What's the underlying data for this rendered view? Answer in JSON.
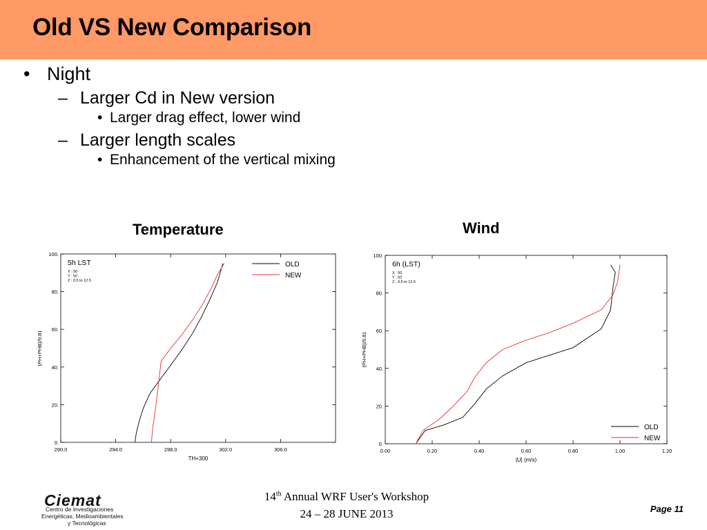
{
  "slide": {
    "title": "Old VS New Comparison",
    "bullets": {
      "b1": "Night",
      "b2": "Larger Cd in New version",
      "b3": "Larger drag effect, lower wind",
      "b4": "Larger length scales",
      "b5": "Enhancement of the vertical mixing"
    },
    "marks": {
      "dot": "•",
      "dash": "–"
    },
    "chart_titles": {
      "temperature": "Temperature",
      "wind": "Wind"
    }
  },
  "footer": {
    "logo_word": "Ciemat",
    "logo_lines": [
      "Centro de Investigaciones",
      "Energéticas, Medioambientales",
      "y Tecnológicas"
    ],
    "workshop_num": "14",
    "workshop_sup": "th",
    "workshop_text": " Annual WRF User's Workshop",
    "workshop_dates": "24 – 28 JUNE 2013",
    "page": "Page 11"
  },
  "colors": {
    "title_bar": "#FF9966",
    "old": "#000000",
    "new": "#E53030"
  },
  "chart_data": [
    {
      "type": "line",
      "title": "Temperature",
      "panel_title": "5h LST",
      "info": [
        "X : 50",
        "Y : 50",
        "Z : 0.5 to 12.5"
      ],
      "xlabel": "TH+300",
      "ylabel": "(PH+PHB)/9.81",
      "xlim": [
        290,
        310
      ],
      "ylim": [
        0,
        100
      ],
      "xticks": [
        290,
        294,
        298,
        302,
        306
      ],
      "xtick_labels": [
        "290.0",
        "294.0",
        "298.0",
        "302.0",
        "306.0"
      ],
      "yticks": [
        0,
        20,
        40,
        60,
        80,
        100
      ],
      "ytick_labels": [
        "0.",
        "20.",
        "40.",
        "60.",
        "80.",
        "100."
      ],
      "legend": "top-right",
      "series": [
        {
          "name": "OLD",
          "color": "#000000",
          "x": [
            295.4,
            295.5,
            295.7,
            296.0,
            296.5,
            297.2,
            298.0,
            298.8,
            299.6,
            300.2,
            300.8,
            301.4,
            301.8
          ],
          "y": [
            0,
            5,
            11,
            18,
            26,
            33,
            41,
            49,
            58,
            66,
            75,
            85,
            95
          ]
        },
        {
          "name": "NEW",
          "color": "#E53030",
          "x": [
            296.6,
            296.7,
            296.9,
            297.1,
            297.3,
            298.0,
            298.8,
            299.6,
            300.3,
            300.9,
            301.4,
            301.9
          ],
          "y": [
            0,
            8,
            18,
            30,
            43,
            50,
            57,
            65,
            73,
            81,
            89,
            95
          ]
        }
      ]
    },
    {
      "type": "line",
      "title": "Wind",
      "panel_title": "6h (LST)",
      "info": [
        "X : 50",
        "Y : 50",
        "Z : 0.5 to 12.5"
      ],
      "xlabel": "|U| (m/s)",
      "ylabel": "(PH+PHB)/9.81",
      "xlim": [
        0,
        1.2
      ],
      "ylim": [
        0,
        100
      ],
      "xticks": [
        0,
        0.2,
        0.4,
        0.6,
        0.8,
        1.0,
        1.2
      ],
      "xtick_labels": [
        "0.00",
        "0.20",
        "0.40",
        "0.60",
        "0.80",
        "1.00",
        "1.20"
      ],
      "yticks": [
        0,
        20,
        40,
        60,
        80,
        100
      ],
      "ytick_labels": [
        "0.",
        "20.",
        "40.",
        "60.",
        "80.",
        "100."
      ],
      "legend": "bottom-right",
      "series": [
        {
          "name": "OLD",
          "color": "#000000",
          "x": [
            0.13,
            0.17,
            0.25,
            0.33,
            0.38,
            0.43,
            0.5,
            0.6,
            0.7,
            0.8,
            0.92,
            0.96,
            0.97,
            0.98,
            0.96
          ],
          "y": [
            0,
            7,
            10,
            14,
            21,
            29,
            36,
            43,
            47,
            51,
            61,
            71,
            83,
            91,
            95
          ]
        },
        {
          "name": "NEW",
          "color": "#E53030",
          "x": [
            0.13,
            0.16,
            0.23,
            0.29,
            0.35,
            0.38,
            0.43,
            0.5,
            0.6,
            0.7,
            0.8,
            0.92,
            0.97,
            0.99,
            1.0
          ],
          "y": [
            0,
            7,
            13,
            20,
            28,
            35,
            43,
            50,
            55,
            59,
            64,
            71,
            79,
            86,
            95
          ]
        }
      ]
    }
  ]
}
